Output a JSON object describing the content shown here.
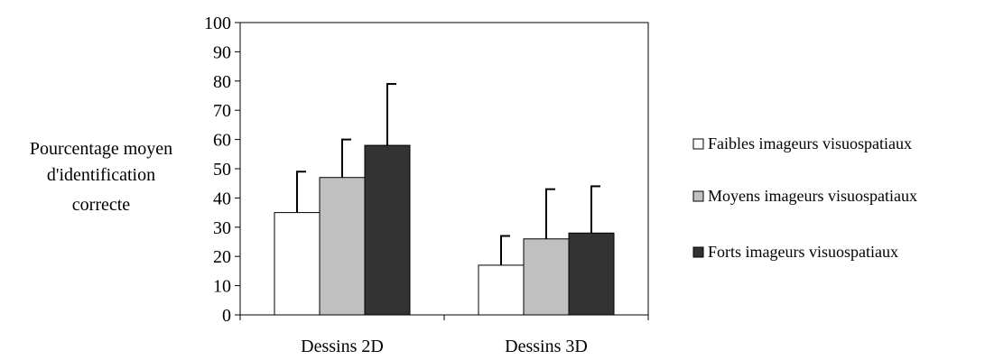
{
  "chart_data": {
    "type": "bar",
    "title": "",
    "ylabel": [
      "Pourcentage moyen",
      "d'identification",
      "correcte"
    ],
    "xlabel": "",
    "categories": [
      "Dessins 2D",
      "Dessins 3D"
    ],
    "ylim": [
      0,
      100
    ],
    "yticks": [
      0,
      10,
      20,
      30,
      40,
      50,
      60,
      70,
      80,
      90,
      100
    ],
    "ytick_labels": [
      "0",
      "10",
      "20",
      "30",
      "40",
      "50",
      "60",
      "70",
      "80",
      "90",
      "100"
    ],
    "grid": false,
    "legend_position": "right",
    "series": [
      {
        "name": "Faibles imageurs visuospatiaux",
        "color": "#ffffff",
        "values": [
          35,
          17
        ],
        "error_upper": [
          49,
          27
        ]
      },
      {
        "name": "Moyens imageurs visuospatiaux",
        "color": "#c0c0c0",
        "values": [
          47,
          26
        ],
        "error_upper": [
          60,
          43
        ]
      },
      {
        "name": "Forts imageurs visuospatiaux",
        "color": "#333333",
        "values": [
          58,
          28
        ],
        "error_upper": [
          79,
          44
        ]
      }
    ]
  }
}
